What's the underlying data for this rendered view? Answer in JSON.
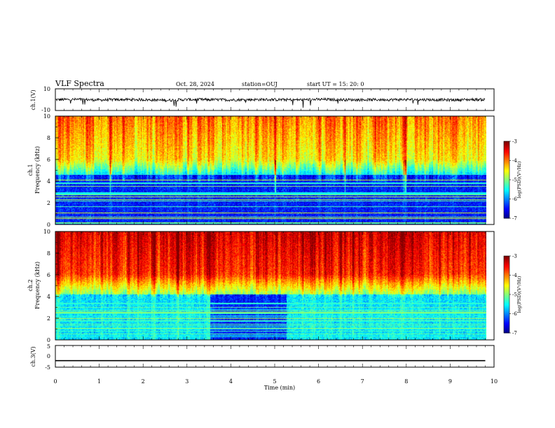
{
  "header": {
    "title": "VLF Spectra",
    "date": "Oct. 28, 2024",
    "station": "station=OUJ",
    "start_ut": "start  UT  =   15: 20: 0"
  },
  "chart_data": [
    {
      "type": "line",
      "name": "ch1-waveform",
      "ylabel": "ch.1(V)",
      "ylim": [
        -10,
        10
      ],
      "ytick_labels": [
        "10",
        "-10"
      ],
      "x": [
        0,
        0.5,
        1,
        1.5,
        2,
        2.5,
        3,
        3.5,
        4,
        4.5,
        5,
        5.5,
        6,
        6.5,
        7,
        7.5,
        8,
        8.5,
        9,
        9.5,
        9.8
      ],
      "y": [
        0,
        0.2,
        -0.3,
        0.1,
        0,
        -0.6,
        0.1,
        0,
        -0.2,
        0.1,
        0,
        -0.1,
        0.2,
        0,
        -0.1,
        0,
        0.1,
        0,
        -0.3,
        0.1,
        0
      ]
    },
    {
      "type": "heatmap",
      "name": "ch1-spectrogram",
      "ylabel": "ch.1\nFrequency (kHz)",
      "ylim": [
        0,
        10
      ],
      "ytick_labels": [
        "0",
        "2",
        "4",
        "6",
        "8",
        "10"
      ],
      "colorbar": {
        "label": "log(PSD)(V²/Hz)",
        "range": [
          -7,
          -3
        ],
        "tick_labels": [
          "-3",
          "-4",
          "-5",
          "-6",
          "-7"
        ]
      },
      "band_description": "0-4.5 kHz mostly low (-6.5..-7), 5-10 kHz mixed green/yellow/orange (-4..-5)"
    },
    {
      "type": "heatmap",
      "name": "ch2-spectrogram",
      "ylabel": "ch.2\nFrequency (kHz)",
      "ylim": [
        0,
        10
      ],
      "ytick_labels": [
        "0",
        "2",
        "4",
        "6",
        "8",
        "10"
      ],
      "colorbar": {
        "label": "log(PSD)(V²/Hz)",
        "range": [
          -7,
          -3
        ],
        "tick_labels": [
          "-3",
          "-4",
          "-5",
          "-6",
          "-7"
        ]
      },
      "band_description": "0-4 kHz cyan/blue (-5.5..-6.5), 5-10 kHz orange/red (-3..-4)"
    },
    {
      "type": "line",
      "name": "ch3-waveform",
      "ylabel": "ch.3(V)",
      "ylim": [
        -5,
        5
      ],
      "ytick_labels": [
        "5",
        "0",
        "-5"
      ],
      "x": [
        0,
        9.8
      ],
      "y": [
        -2,
        -2
      ]
    }
  ],
  "x_axis": {
    "label": "Time (min)",
    "range": [
      0,
      10
    ],
    "tick_labels": [
      "0",
      "1",
      "2",
      "3",
      "4",
      "5",
      "6",
      "7",
      "8",
      "9",
      "10"
    ]
  }
}
